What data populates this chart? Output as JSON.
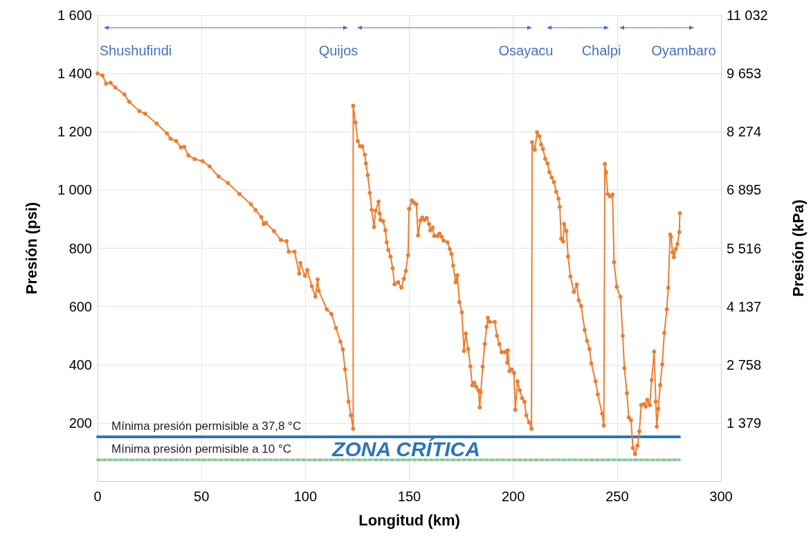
{
  "chart_data": {
    "type": "line",
    "xlabel": "Longitud (km)",
    "ylabel": "Presión (psi)",
    "y2label": "Presión (kPa)",
    "xlim": [
      0,
      300
    ],
    "xticks": [
      0,
      50,
      100,
      150,
      200,
      250,
      300
    ],
    "ylim": [
      0,
      1600
    ],
    "yticks": [
      {
        "value": 0,
        "label": null
      },
      200,
      400,
      600,
      800,
      1000,
      1200,
      1400,
      1600
    ],
    "y2lim": [
      0,
      11032
    ],
    "y2ticks": [
      1379,
      2758,
      4137,
      5516,
      6895,
      8274,
      9653,
      11032
    ],
    "grid": true,
    "legend": false,
    "marker": "circle",
    "annotations": [
      "Shushufindi",
      "Quijos",
      "Osayacu",
      "Chalpi",
      "Oyambaro",
      "ZONA CRÍTICA"
    ],
    "series": [
      {
        "color": "#ed7d31",
        "line_style": "solid",
        "x": [
          0,
          2.4,
          4.1,
          6.3,
          8.5,
          12.9,
          15.2,
          20.1,
          22.9,
          28.4,
          33.4,
          35.1,
          37.8,
          40.1,
          41.7,
          43.7,
          46.7,
          50.5,
          53.9,
          58.3,
          62.7,
          68.3,
          73.8,
          76,
          78.8,
          79.9,
          81,
          84.9,
          88.2,
          90.9,
          92,
          94.8,
          97,
          97.6,
          99.8,
          100.9,
          103.1,
          104.8,
          105.9,
          106.4,
          110.3,
          112.5,
          114.7,
          116.9,
          118,
          119.1,
          120.8,
          121.9,
          123,
          123,
          124.1,
          125.2,
          126.3,
          127.4,
          128.6,
          129.1,
          130,
          131,
          131.9,
          133,
          133.8,
          135.2,
          135.7,
          136.1,
          137.4,
          138.5,
          139.1,
          139.9,
          141,
          142,
          142.9,
          144.6,
          146.2,
          147.4,
          148.3,
          149.4,
          149.9,
          151.2,
          152.3,
          153.4,
          154.2,
          155.3,
          156.2,
          157.3,
          158.4,
          159.5,
          160.1,
          161.2,
          162,
          163.6,
          164.5,
          165.6,
          166.5,
          168.4,
          169.5,
          170.3,
          171.1,
          172.3,
          173.1,
          174.1,
          175.3,
          176.3,
          177.2,
          178.3,
          179.4,
          180.3,
          181.3,
          182.2,
          183.3,
          183.9,
          184.4,
          185.3,
          186.3,
          187.2,
          187.8,
          188.7,
          191.1,
          192.2,
          193.3,
          194.4,
          196,
          196.9,
          197.1,
          197.4,
          198.2,
          199.3,
          200.4,
          201,
          202.1,
          203.2,
          204.3,
          205.4,
          206.3,
          207.6,
          208.8,
          209.1,
          210.4,
          211.5,
          212.6,
          213.4,
          214.3,
          215.4,
          216.5,
          217.4,
          218.5,
          219.6,
          220.7,
          221.8,
          222.4,
          223.1,
          224,
          224.5,
          225.6,
          226.4,
          227.5,
          229.2,
          230.6,
          231.5,
          232.7,
          234.4,
          235.5,
          236.7,
          237.6,
          239.6,
          240.7,
          242.8,
          243.6,
          244.1,
          244.7,
          245.5,
          246.6,
          247.8,
          248.5,
          249.8,
          251.6,
          252.7,
          253.5,
          254.7,
          255.6,
          256.7,
          257.6,
          258.6,
          259.8,
          260.7,
          261.6,
          263,
          263.8,
          264.5,
          265.7,
          266.6,
          267.8,
          268.6,
          269.1,
          269.8,
          270.7,
          271.7,
          272.7,
          273.9,
          274.6,
          275.5,
          275.9,
          276.7,
          277.3,
          278.2,
          279,
          279.9,
          280.2
        ],
        "values": [
          1400,
          1393,
          1365,
          1368,
          1352,
          1328,
          1303,
          1271,
          1262,
          1228,
          1194,
          1176,
          1168,
          1146,
          1148,
          1119,
          1106,
          1099,
          1081,
          1046,
          1024,
          986,
          951,
          931,
          907,
          883,
          887,
          859,
          828,
          824,
          788,
          788,
          713,
          749,
          705,
          725,
          669,
          634,
          693,
          654,
          590,
          574,
          526,
          479,
          452,
          384,
          273,
          226,
          180,
          1289,
          1232,
          1168,
          1150,
          1150,
          1121,
          1091,
          1051,
          990,
          932,
          873,
          929,
          960,
          919,
          897,
          893,
          861,
          820,
          794,
          771,
          731,
          676,
          683,
          665,
          695,
          722,
          776,
          935,
          964,
          956,
          951,
          844,
          895,
          905,
          897,
          904,
          883,
          861,
          871,
          842,
          842,
          850,
          839,
          826,
          820,
          797,
          780,
          740,
          683,
          707,
          615,
          580,
          447,
          507,
          454,
          394,
          329,
          338,
          324,
          312,
          253,
          305,
          393,
          471,
          530,
          561,
          547,
          547,
          499,
          471,
          443,
          443,
          447,
          407,
          449,
          378,
          384,
          372,
          245,
          343,
          312,
          285,
          273,
          226,
          202,
          180,
          1164,
          1138,
          1198,
          1184,
          1156,
          1141,
          1107,
          1091,
          1061,
          1043,
          1027,
          994,
          970,
          942,
          832,
          823,
          883,
          859,
          771,
          703,
          650,
          675,
          621,
          601,
          519,
          482,
          454,
          404,
          343,
          298,
          232,
          191,
          1089,
          1060,
          986,
          978,
          984,
          752,
          667,
          633,
          499,
          388,
          302,
          219,
          209,
          114,
          93,
          122,
          171,
          261,
          265,
          256,
          279,
          261,
          347,
          445,
          273,
          187,
          248,
          330,
          401,
          509,
          590,
          664,
          847,
          839,
          786,
          769,
          797,
          814,
          855,
          920
        ]
      },
      {
        "name": "Mínima presión permisible a 37,8 °C",
        "color": "#2e75b6",
        "line_style": "solid",
        "marker": "none",
        "x": [
          0,
          280
        ],
        "values": [
          152,
          152
        ]
      },
      {
        "name": "Mínima presión permisible a 10 °C",
        "color": "#8cc79a",
        "line_style": "dotted",
        "marker": "none",
        "x": [
          0,
          280
        ],
        "values": [
          73,
          73
        ]
      }
    ]
  }
}
